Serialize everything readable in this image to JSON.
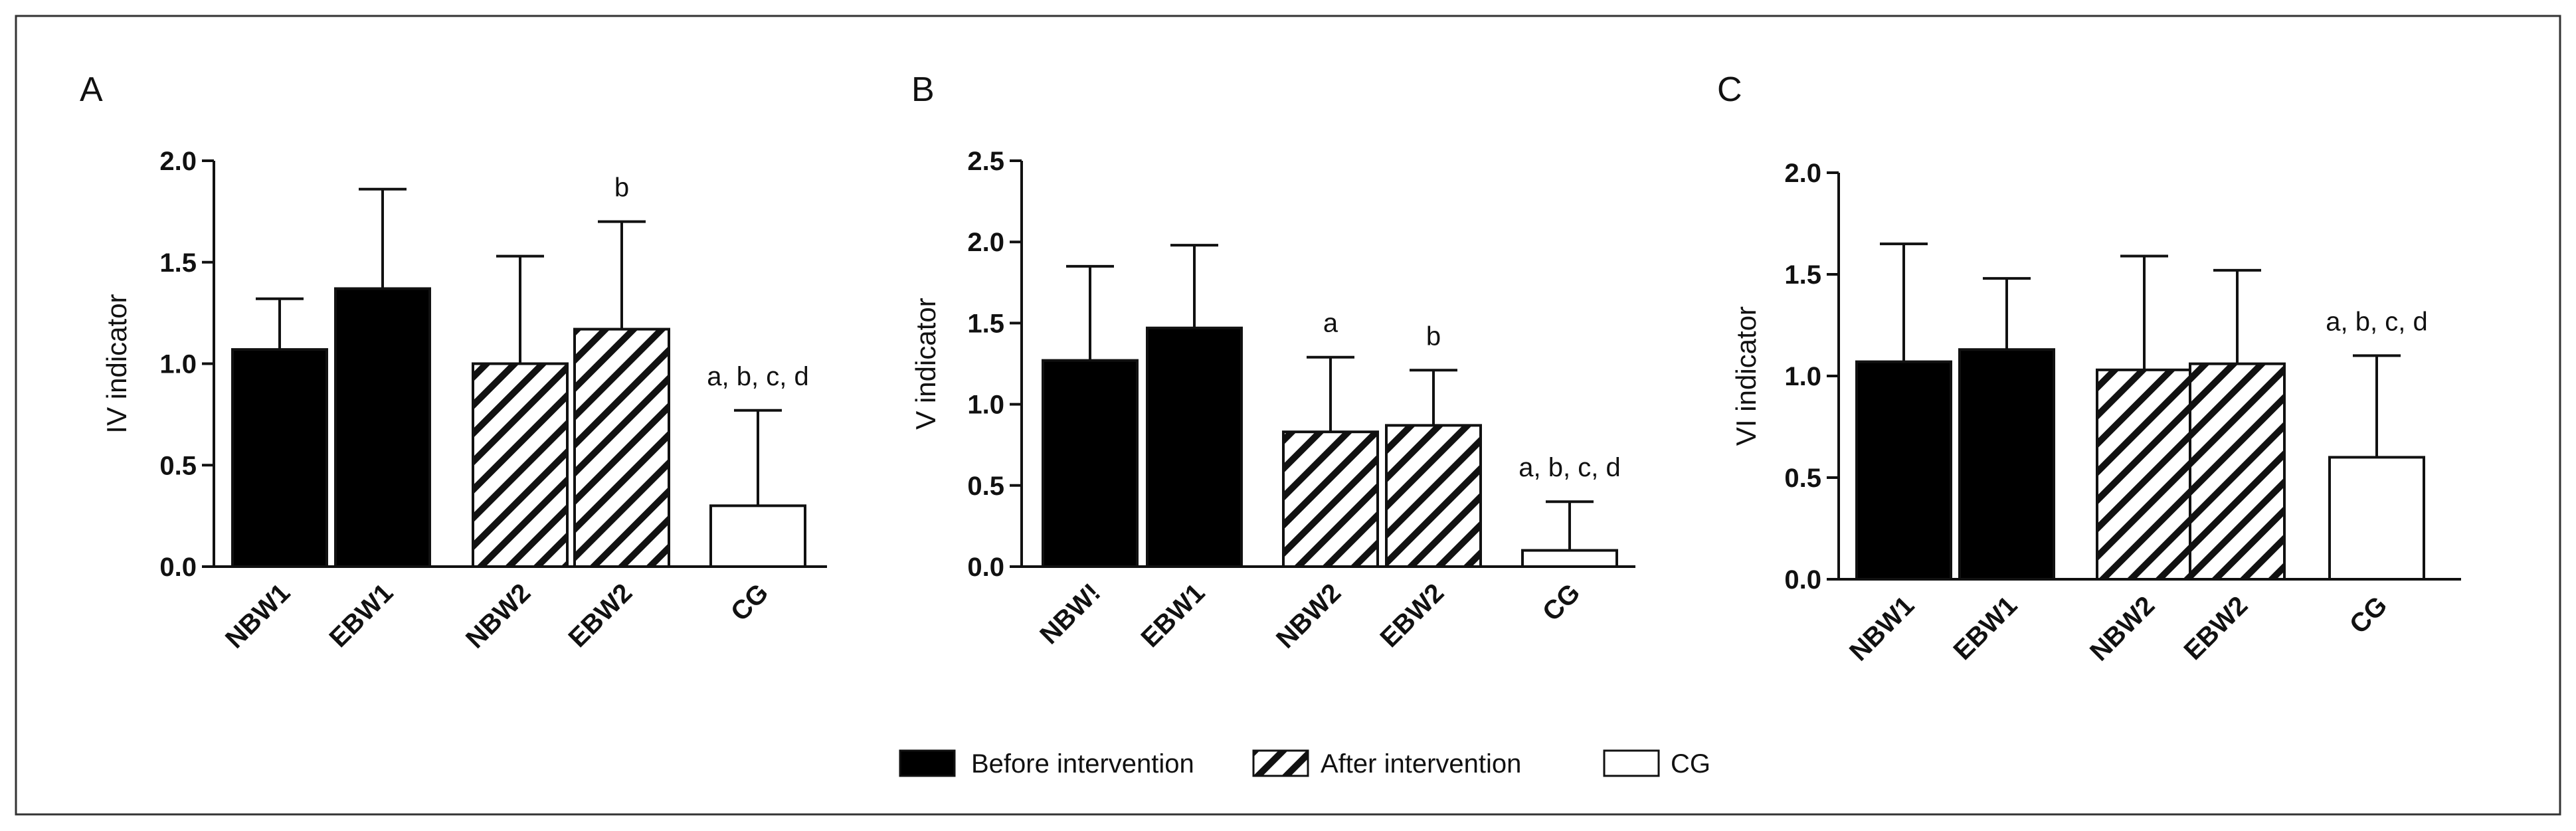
{
  "chart_data": [
    {
      "type": "bar",
      "panel": "A",
      "ylabel": "IV indicator",
      "ylim": [
        0,
        2.0
      ],
      "yticks": [
        "0.0",
        "0.5",
        "1.0",
        "1.5",
        "2.0"
      ],
      "categories": [
        "NBW1",
        "EBW1",
        "NBW2",
        "EBW2",
        "CG"
      ],
      "values": [
        1.07,
        1.37,
        1.0,
        1.17,
        0.3
      ],
      "errors": [
        0.25,
        0.49,
        0.53,
        0.53,
        0.47
      ],
      "fill": [
        "before",
        "before",
        "after",
        "after",
        "cg"
      ],
      "annotations": [
        "",
        "",
        "",
        "b",
        "a, b, c, d"
      ]
    },
    {
      "type": "bar",
      "panel": "B",
      "ylabel": "V indicator",
      "ylim": [
        0,
        2.5
      ],
      "yticks": [
        "0.0",
        "0.5",
        "1.0",
        "1.5",
        "2.0",
        "2.5"
      ],
      "categories": [
        "NBW!",
        "EBW1",
        "NBW2",
        "EBW2",
        "CG"
      ],
      "values": [
        1.27,
        1.47,
        0.83,
        0.87,
        0.1
      ],
      "errors": [
        0.58,
        0.51,
        0.46,
        0.34,
        0.3
      ],
      "fill": [
        "before",
        "before",
        "after",
        "after",
        "cg"
      ],
      "annotations": [
        "",
        "",
        "a",
        "b",
        "a, b, c, d"
      ]
    },
    {
      "type": "bar",
      "panel": "C",
      "ylabel": "VI indicator",
      "ylim": [
        0,
        2.0
      ],
      "yticks": [
        "0.0",
        "0.5",
        "1.0",
        "1.5",
        "2.0"
      ],
      "categories": [
        "NBW1",
        "EBW1",
        "NBW2",
        "EBW2",
        "CG"
      ],
      "values": [
        1.07,
        1.13,
        1.03,
        1.06,
        0.6
      ],
      "errors": [
        0.58,
        0.35,
        0.56,
        0.46,
        0.5
      ],
      "fill": [
        "before",
        "before",
        "after",
        "after",
        "cg"
      ],
      "annotations": [
        "",
        "",
        "",
        "",
        "a, b, c, d"
      ]
    }
  ],
  "legend": [
    {
      "key": "before",
      "label": "Before intervention"
    },
    {
      "key": "after",
      "label": "After intervention"
    },
    {
      "key": "cg",
      "label": "CG"
    }
  ],
  "colors": {
    "before": "#000000",
    "stroke": "#111111",
    "cg": "#ffffff"
  }
}
